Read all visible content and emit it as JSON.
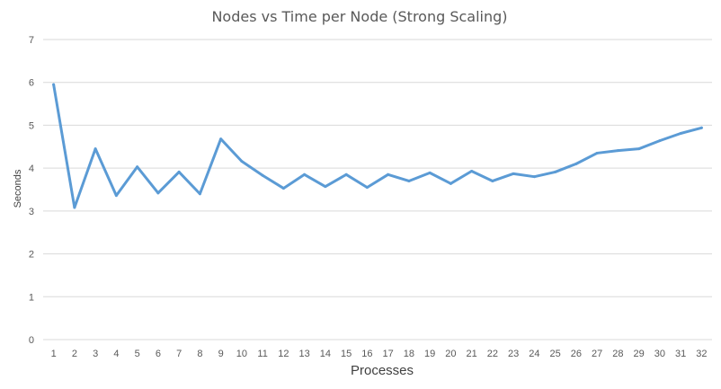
{
  "chart_data": {
    "type": "line",
    "title": "Nodes vs Time per Node (Strong Scaling)",
    "xlabel": "Processes",
    "ylabel": "Seconds",
    "categories": [
      "1",
      "2",
      "3",
      "4",
      "5",
      "6",
      "7",
      "8",
      "9",
      "10",
      "11",
      "12",
      "13",
      "14",
      "15",
      "16",
      "17",
      "18",
      "19",
      "20",
      "21",
      "22",
      "23",
      "24",
      "25",
      "26",
      "27",
      "28",
      "29",
      "30",
      "31",
      "32"
    ],
    "series": [
      {
        "values": [
          5.95,
          3.08,
          4.45,
          3.36,
          4.03,
          3.42,
          3.91,
          3.4,
          4.68,
          4.16,
          3.83,
          3.53,
          3.85,
          3.57,
          3.85,
          3.55,
          3.85,
          3.7,
          3.89,
          3.64,
          3.93,
          3.7,
          3.87,
          3.8,
          3.91,
          4.1,
          4.35,
          4.41,
          4.45,
          4.64,
          4.81,
          4.94
        ]
      }
    ],
    "ylim": [
      0,
      7
    ],
    "yticks": [
      "0",
      "1",
      "2",
      "3",
      "4",
      "5",
      "6",
      "7"
    ],
    "grid": true,
    "line_color": "#5b9bd5"
  }
}
